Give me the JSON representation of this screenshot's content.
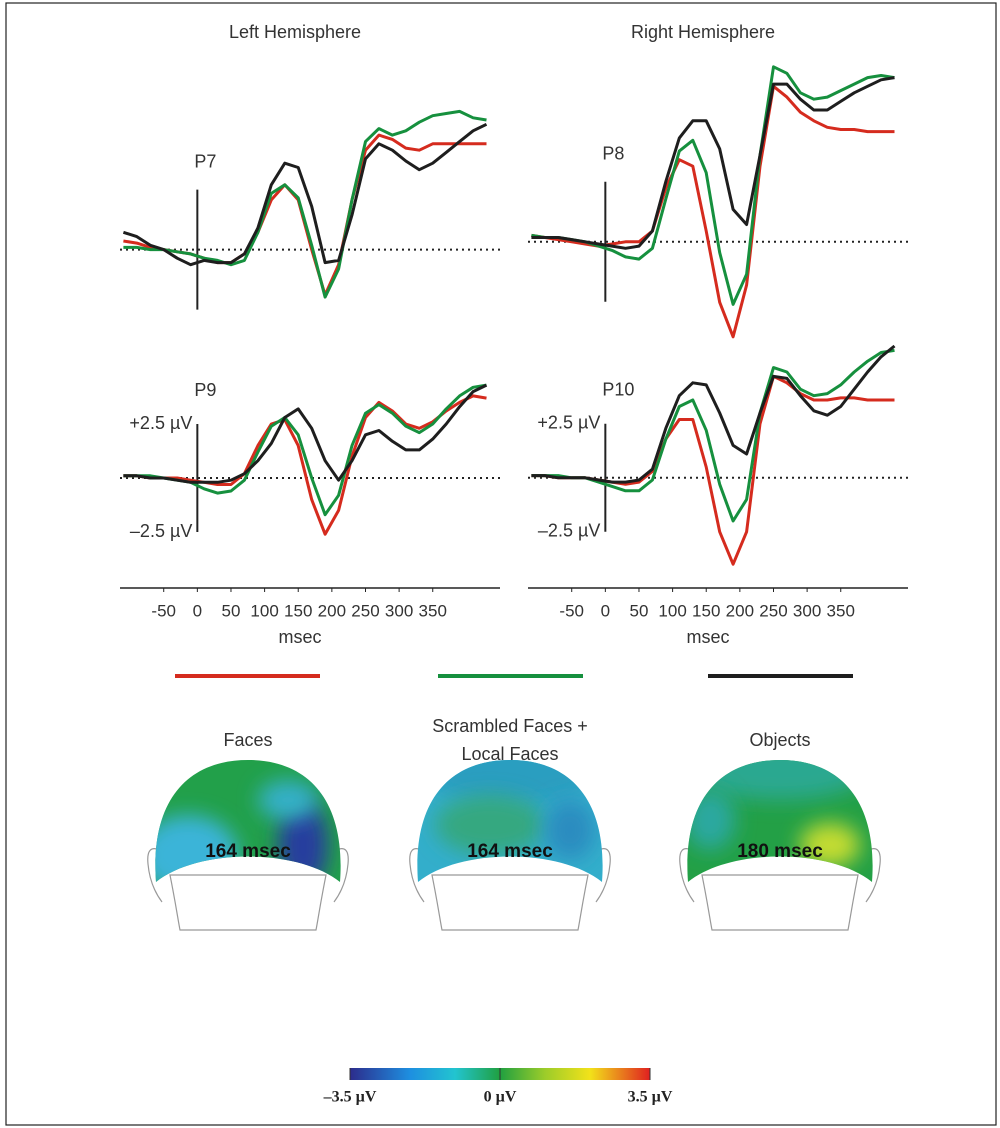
{
  "chart_data": [
    {
      "type": "line",
      "title": "Left Hemisphere",
      "label": "P7",
      "x": [
        -110,
        -90,
        -70,
        -50,
        -30,
        -10,
        10,
        30,
        50,
        70,
        90,
        110,
        130,
        150,
        170,
        190,
        210,
        230,
        250,
        270,
        290,
        310,
        330,
        350,
        370,
        390,
        410,
        430
      ],
      "xlim": [
        -115,
        450
      ],
      "ylim": [
        -3,
        8.5
      ],
      "series": [
        {
          "values": [
            0.4,
            0.3,
            0.1,
            0,
            -0.1,
            -0.2,
            -0.4,
            -0.6,
            -0.6,
            -0.2,
            0.8,
            2.3,
            3.0,
            2.3,
            0,
            -2.1,
            -0.7,
            2.3,
            4.6,
            5.3,
            5.1,
            4.7,
            4.6,
            4.9,
            4.9,
            4.9,
            4.9,
            4.9
          ]
        },
        {
          "values": [
            0.1,
            0.1,
            0,
            0,
            -0.1,
            -0.2,
            -0.4,
            -0.5,
            -0.7,
            -0.5,
            0.8,
            2.6,
            3.0,
            2.4,
            0.2,
            -2.2,
            -0.9,
            2.3,
            5.0,
            5.6,
            5.3,
            5.5,
            5.9,
            6.2,
            6.3,
            6.4,
            6.1,
            6.0
          ]
        },
        {
          "values": [
            0.8,
            0.6,
            0.2,
            0,
            -0.4,
            -0.7,
            -0.5,
            -0.6,
            -0.6,
            -0.2,
            1.0,
            3.0,
            4.0,
            3.8,
            2.0,
            -0.6,
            -0.5,
            1.6,
            4.2,
            4.9,
            4.6,
            4.1,
            3.7,
            4.0,
            4.5,
            5.0,
            5.5,
            5.8
          ]
        }
      ]
    },
    {
      "type": "line",
      "title": "Right Hemisphere",
      "label": "P8",
      "x": [
        -110,
        -90,
        -70,
        -50,
        -30,
        -10,
        10,
        30,
        50,
        70,
        90,
        110,
        130,
        150,
        170,
        190,
        210,
        230,
        250,
        270,
        290,
        310,
        330,
        350,
        370,
        390,
        410,
        430
      ],
      "xlim": [
        -115,
        450
      ],
      "ylim": [
        -4.5,
        8.5
      ],
      "series": [
        {
          "values": [
            0.3,
            0.2,
            0.1,
            0,
            -0.1,
            -0.2,
            -0.1,
            0,
            0,
            0.5,
            2.5,
            3.8,
            3.5,
            0.5,
            -2.8,
            -4.4,
            -2.0,
            3.5,
            7.2,
            6.7,
            6.0,
            5.6,
            5.3,
            5.2,
            5.2,
            5.1,
            5.1,
            5.1
          ]
        },
        {
          "values": [
            0.3,
            0.2,
            0.2,
            0.1,
            0,
            -0.2,
            -0.4,
            -0.7,
            -0.8,
            -0.3,
            2.0,
            4.2,
            4.7,
            3.2,
            -0.5,
            -2.9,
            -1.5,
            4.0,
            8.1,
            7.8,
            6.9,
            6.6,
            6.7,
            7.0,
            7.3,
            7.6,
            7.7,
            7.6
          ]
        },
        {
          "values": [
            0.2,
            0.2,
            0.2,
            0.1,
            0,
            -0.1,
            -0.2,
            -0.3,
            -0.2,
            0.5,
            2.8,
            4.8,
            5.6,
            5.6,
            4.3,
            1.5,
            0.8,
            4.0,
            7.3,
            7.3,
            6.6,
            6.1,
            6.1,
            6.5,
            6.9,
            7.2,
            7.5,
            7.6
          ]
        }
      ]
    },
    {
      "type": "line",
      "label": "P9",
      "xlabel": "msec",
      "x": [
        -110,
        -90,
        -70,
        -50,
        -30,
        -10,
        10,
        30,
        50,
        70,
        90,
        110,
        130,
        150,
        170,
        190,
        210,
        230,
        250,
        270,
        290,
        310,
        330,
        350,
        370,
        390,
        410,
        430
      ],
      "xlim": [
        -115,
        450
      ],
      "ylim": [
        -3.5,
        5
      ],
      "xticks": [
        -50,
        0,
        50,
        100,
        150,
        200,
        250,
        300,
        350
      ],
      "yticks": [
        {
          "value": 2.5,
          "label": "+2.5 µV"
        },
        {
          "value": -2.5,
          "label": "–2.5 µV"
        }
      ],
      "series": [
        {
          "values": [
            0.1,
            0.1,
            0,
            0,
            0,
            -0.1,
            -0.2,
            -0.3,
            -0.3,
            0.2,
            1.5,
            2.5,
            2.7,
            1.5,
            -1.0,
            -2.6,
            -1.5,
            1.0,
            2.8,
            3.5,
            3.1,
            2.5,
            2.3,
            2.6,
            3.1,
            3.5,
            3.8,
            3.7
          ]
        },
        {
          "values": [
            0.1,
            0.1,
            0.1,
            0,
            -0.1,
            -0.2,
            -0.5,
            -0.7,
            -0.6,
            -0.1,
            1.2,
            2.4,
            2.8,
            2.0,
            0,
            -1.7,
            -0.8,
            1.5,
            3.0,
            3.4,
            3.0,
            2.4,
            2.1,
            2.5,
            3.2,
            3.8,
            4.2,
            4.3
          ]
        },
        {
          "values": [
            0.1,
            0.1,
            0,
            0,
            -0.1,
            -0.2,
            -0.2,
            -0.2,
            -0.1,
            0.2,
            0.8,
            1.6,
            2.8,
            3.2,
            2.3,
            0.8,
            -0.1,
            0.8,
            2.0,
            2.2,
            1.7,
            1.3,
            1.3,
            1.8,
            2.5,
            3.3,
            4.0,
            4.3
          ]
        }
      ]
    },
    {
      "type": "line",
      "label": "P10",
      "xlabel": "msec",
      "x": [
        -110,
        -90,
        -70,
        -50,
        -30,
        -10,
        10,
        30,
        50,
        70,
        90,
        110,
        130,
        150,
        170,
        190,
        210,
        230,
        250,
        270,
        290,
        310,
        330,
        350,
        370,
        390,
        410,
        430
      ],
      "xlim": [
        -115,
        450
      ],
      "ylim": [
        -4.5,
        6
      ],
      "xticks": [
        -50,
        0,
        50,
        100,
        150,
        200,
        250,
        300,
        350
      ],
      "yticks": [
        {
          "value": 2.5,
          "label": "+2.5 µV"
        },
        {
          "value": -2.5,
          "label": "–2.5 µV"
        }
      ],
      "series": [
        {
          "values": [
            0.1,
            0.1,
            0,
            0,
            0,
            -0.1,
            -0.2,
            -0.3,
            -0.2,
            0.3,
            1.8,
            2.7,
            2.7,
            0.5,
            -2.5,
            -4.0,
            -2.5,
            2.5,
            4.7,
            4.4,
            3.9,
            3.6,
            3.6,
            3.7,
            3.7,
            3.6,
            3.6,
            3.6
          ]
        },
        {
          "values": [
            0.1,
            0.1,
            0.1,
            0,
            0,
            -0.2,
            -0.4,
            -0.6,
            -0.6,
            -0.1,
            1.8,
            3.3,
            3.6,
            2.2,
            -0.3,
            -2.0,
            -1.0,
            3.0,
            5.1,
            4.9,
            4.1,
            3.8,
            3.9,
            4.3,
            4.9,
            5.4,
            5.8,
            5.9
          ]
        },
        {
          "values": [
            0.1,
            0.1,
            0,
            0,
            0,
            -0.1,
            -0.2,
            -0.2,
            -0.1,
            0.4,
            2.3,
            3.8,
            4.4,
            4.3,
            3.0,
            1.5,
            1.1,
            3.0,
            4.7,
            4.6,
            3.8,
            3.1,
            2.9,
            3.3,
            4.1,
            4.9,
            5.6,
            6.1
          ]
        }
      ]
    }
  ],
  "legend": [
    {
      "name": "Faces",
      "color": "#d52b1e",
      "map_time": "164 msec"
    },
    {
      "name": "Scrambled Faces +\nLocal Faces",
      "color": "#16903e",
      "map_time": "164 msec"
    },
    {
      "name": "Objects",
      "color": "#1e1e1e",
      "map_time": "180 msec"
    }
  ],
  "colorbar": {
    "lim": [
      -3.5,
      3.5
    ],
    "ticks": [
      {
        "value": -3.5,
        "label": "–3.5 µV"
      },
      {
        "value": 0,
        "label": "0 µV"
      },
      {
        "value": 3.5,
        "label": "3.5 µV"
      }
    ]
  }
}
